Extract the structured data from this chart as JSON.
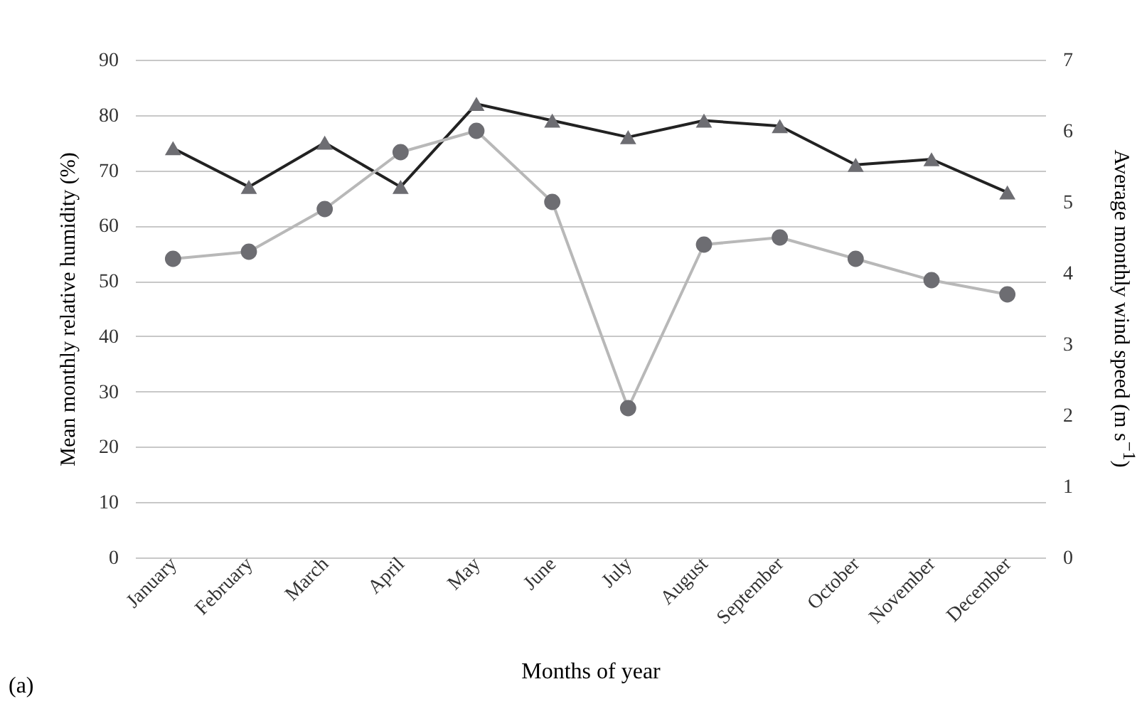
{
  "chart_data": {
    "type": "line",
    "categories": [
      "January",
      "February",
      "March",
      "April",
      "May",
      "June",
      "July",
      "August",
      "September",
      "October",
      "November",
      "December"
    ],
    "xlabel": "Months of year",
    "ylabel": "Mean monthly relative humidity (%)",
    "y2label": "Average monthly wind speed (m s$^{−1}$)",
    "ylim": [
      0,
      90
    ],
    "yticks": [
      0,
      10,
      20,
      30,
      40,
      50,
      60,
      70,
      80,
      90
    ],
    "y2lim": [
      0,
      7
    ],
    "y2ticks": [
      0,
      1,
      2,
      3,
      4,
      5,
      6,
      7
    ],
    "series": [
      {
        "color": "#222222",
        "marker": "triangle",
        "values": [
          74,
          67,
          75,
          67,
          82,
          79,
          76,
          79,
          78,
          71,
          72,
          66
        ]
      },
      {
        "color": "#b8b8b8",
        "marker": "circle",
        "axis": "y2",
        "values": [
          4.2,
          4.3,
          4.9,
          5.7,
          6.0,
          5.0,
          2.1,
          4.4,
          4.5,
          4.2,
          3.9,
          3.7
        ]
      }
    ],
    "grid": "y",
    "annotations": [
      "(a)"
    ]
  }
}
